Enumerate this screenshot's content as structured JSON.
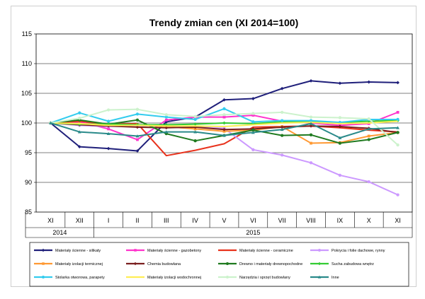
{
  "chart_data": {
    "type": "line",
    "title": "Trendy zmian cen (XI 2014=100)",
    "ylim": [
      85,
      115
    ],
    "yticks": [
      85,
      90,
      95,
      100,
      105,
      110,
      115
    ],
    "grid": true,
    "legend_position": "bottom",
    "categories": [
      "XI",
      "XII",
      "I",
      "II",
      "III",
      "IV",
      "V",
      "VI",
      "VII",
      "VIII",
      "IX",
      "X",
      "XI"
    ],
    "year_labels": [
      {
        "label": "2014",
        "span": [
          0,
          1
        ]
      },
      {
        "label": "2015",
        "span": [
          2,
          12
        ]
      }
    ],
    "series": [
      {
        "name": "Materiały ścienne - silikaty",
        "color": "#1f1f7a",
        "marker": "diamond",
        "values": [
          100,
          96.0,
          95.7,
          95.3,
          100.2,
          101.0,
          103.9,
          104.1,
          105.8,
          107.1,
          106.7,
          106.9,
          106.8
        ]
      },
      {
        "name": "Materiały ścienne - gazobetony",
        "color": "#ff33cc",
        "marker": "square",
        "values": [
          100,
          100.2,
          99.0,
          97.2,
          100.5,
          101.0,
          101.0,
          101.3,
          100.3,
          100.0,
          99.6,
          99.9,
          101.8
        ]
      },
      {
        "name": "Materiały ścienne - ceramiczne",
        "color": "#e8321c",
        "marker": "none",
        "values": [
          100,
          100.3,
          99.8,
          99.9,
          94.5,
          95.4,
          96.5,
          99.3,
          99.4,
          99.5,
          99.2,
          98.8,
          98.5
        ]
      },
      {
        "name": "Pokrycia i folie dachowe, rynny",
        "color": "#cc99ff",
        "marker": "circle",
        "values": [
          100,
          99.6,
          99.4,
          99.5,
          99.6,
          99.3,
          99.1,
          95.5,
          94.6,
          93.3,
          91.2,
          90.1,
          87.9
        ]
      },
      {
        "name": "Materiały izolacji termicznej",
        "color": "#ff9933",
        "marker": "square",
        "values": [
          100,
          99.9,
          99.7,
          99.7,
          99.4,
          99.0,
          98.6,
          98.8,
          99.4,
          96.6,
          96.7,
          97.8,
          98.4
        ]
      },
      {
        "name": "Chemia budowlana",
        "color": "#7a1f1f",
        "marker": "diamond",
        "values": [
          100,
          99.7,
          99.5,
          99.3,
          99.2,
          99.3,
          98.9,
          99.0,
          99.3,
          99.5,
          99.4,
          99.1,
          98.4
        ]
      },
      {
        "name": "Drewno i materiały drewnopochodne",
        "color": "#1f7a1f",
        "marker": "circle",
        "values": [
          100,
          100.5,
          99.8,
          100.5,
          98.2,
          97.0,
          97.9,
          98.8,
          97.9,
          98.0,
          96.6,
          97.2,
          98.4
        ]
      },
      {
        "name": "Sucha zabudowa wnętrz",
        "color": "#33cc33",
        "marker": "diamond",
        "values": [
          100,
          99.8,
          99.8,
          99.7,
          99.7,
          99.8,
          100.0,
          99.9,
          100.2,
          100.2,
          100.1,
          100.3,
          100.4
        ]
      },
      {
        "name": "Stolarka otworowa, parapety",
        "color": "#33ccee",
        "marker": "circle",
        "values": [
          100,
          101.7,
          100.3,
          101.5,
          101.0,
          100.6,
          102.4,
          100.2,
          100.4,
          100.4,
          100.1,
          100.6,
          100.6
        ]
      },
      {
        "name": "Materiały izolacji wodochronnej",
        "color": "#ffee55",
        "marker": "none",
        "values": [
          100,
          99.9,
          99.6,
          99.6,
          99.5,
          99.5,
          99.4,
          99.7,
          100.0,
          100.1,
          99.9,
          100.0,
          100.3
        ]
      },
      {
        "name": "Narzędzia i sprzęt budowlany",
        "color": "#ccf2cc",
        "marker": "circle",
        "values": [
          100,
          100.8,
          102.2,
          102.3,
          101.4,
          101.1,
          101.4,
          101.6,
          101.8,
          101.0,
          100.9,
          100.7,
          96.3
        ]
      },
      {
        "name": "Inne",
        "color": "#2a8a8a",
        "marker": "triangle",
        "values": [
          100,
          98.5,
          98.2,
          97.8,
          98.5,
          98.5,
          97.9,
          98.4,
          98.9,
          99.9,
          97.5,
          99.0,
          99.2
        ]
      }
    ]
  }
}
